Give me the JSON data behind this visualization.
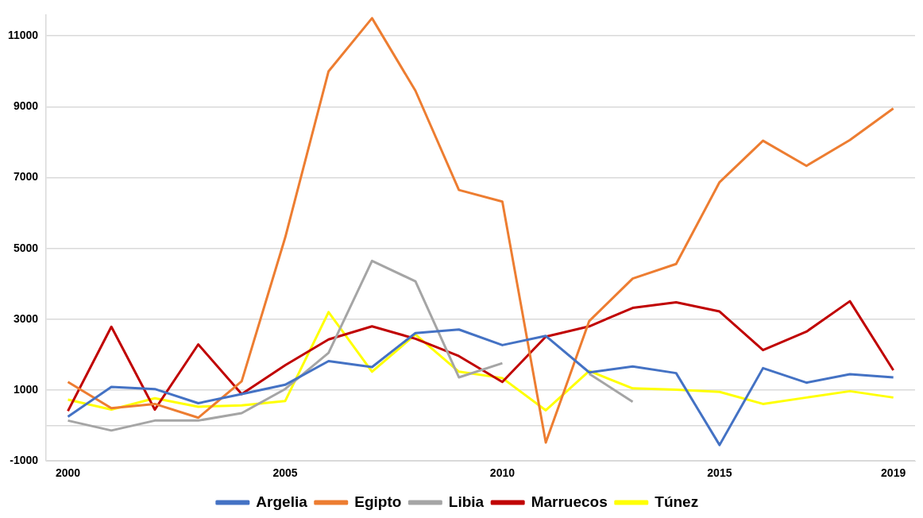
{
  "chart_data": {
    "type": "line",
    "categories": [
      "2000",
      null,
      null,
      null,
      null,
      "2005",
      null,
      null,
      null,
      null,
      "2010",
      null,
      null,
      null,
      null,
      "2015",
      null,
      null,
      null,
      "2019"
    ],
    "series": [
      {
        "name": "Argelia",
        "color": "#4472c4",
        "values": [
          250,
          1090,
          1030,
          630,
          890,
          1150,
          1820,
          1650,
          2610,
          2710,
          2270,
          2530,
          1500,
          1670,
          1480,
          -550,
          1620,
          1210,
          1450,
          1360
        ]
      },
      {
        "name": "Egipto",
        "color": "#ed7d31",
        "values": [
          1230,
          490,
          610,
          220,
          1250,
          5300,
          10000,
          11500,
          9450,
          6650,
          6320,
          -480,
          2950,
          4150,
          4560,
          6870,
          8040,
          7330,
          8060,
          8950
        ]
      },
      {
        "name": "Libia",
        "color": "#a5a5a5",
        "values": [
          140,
          -140,
          140,
          140,
          350,
          1030,
          2050,
          4650,
          4070,
          1360,
          1760,
          null,
          1460,
          670,
          null,
          null,
          null,
          null,
          null,
          null
        ]
      },
      {
        "name": "Marruecos",
        "color": "#c00000",
        "values": [
          410,
          2790,
          450,
          2290,
          890,
          1700,
          2430,
          2800,
          2450,
          1960,
          1230,
          2510,
          2800,
          3320,
          3480,
          3220,
          2130,
          2650,
          3510,
          1560
        ]
      },
      {
        "name": "Túnez",
        "color": "#ffff00",
        "values": [
          730,
          450,
          770,
          530,
          570,
          690,
          3200,
          1520,
          2570,
          1520,
          1340,
          430,
          1540,
          1050,
          1010,
          950,
          610,
          790,
          970,
          790
        ]
      }
    ],
    "ylim": [
      -1000,
      11600
    ],
    "yticks": [
      -1000,
      {
        "value": 0,
        "label": null
      },
      1000,
      3000,
      5000,
      7000,
      9000,
      11000
    ],
    "grid": "y",
    "legend": "bottom",
    "marker": "none",
    "line_style": "solid"
  }
}
